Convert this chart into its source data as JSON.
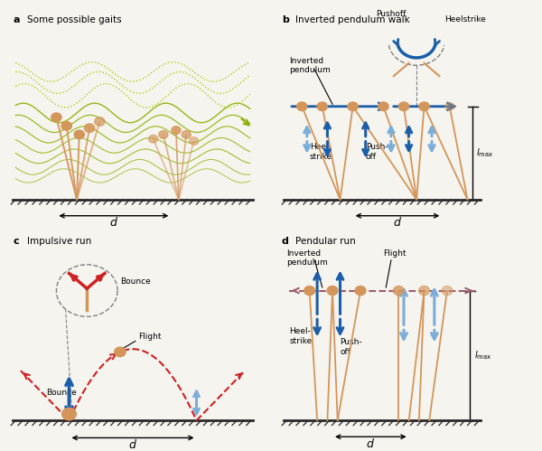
{
  "bg_color": "#f5f4ef",
  "panel_a_title": "a  Some possible gaits",
  "panel_b_title": "b  Inverted pendulum walk",
  "panel_c_title": "c  Impulsive run",
  "panel_d_title": "d  Pendular run",
  "tan_color": "#D4955A",
  "tan_light": "#E8C090",
  "green_solid": "#8DB000",
  "green_dotted": "#AACC00",
  "blue_dark": "#1B5EA8",
  "blue_light": "#7AADD8",
  "red_color": "#CC2222",
  "mauve_color": "#9B6070",
  "ground_color": "#2a2a2a",
  "arrow_blue": "#1B5EA8",
  "arrow_blue_light": "#7AADD8"
}
